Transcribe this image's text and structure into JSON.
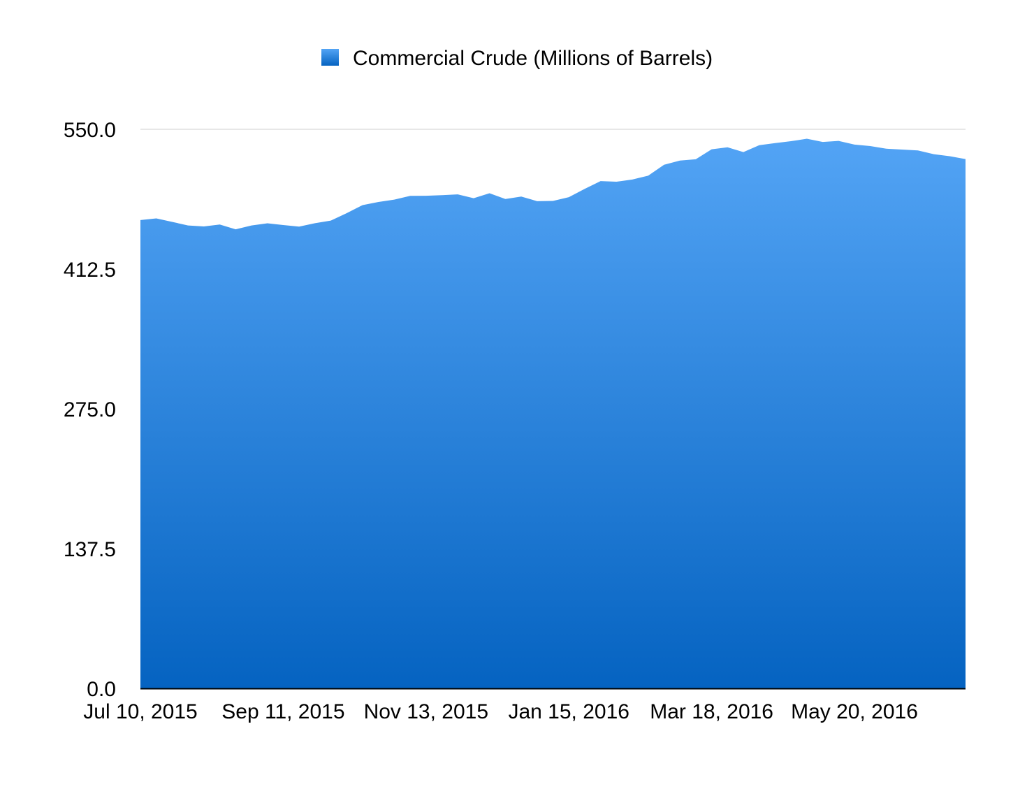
{
  "chart_data": {
    "type": "area",
    "legend": {
      "placement": "top-center",
      "entries": [
        {
          "label": "Commercial Crude (Millions of Barrels)"
        }
      ]
    },
    "series": [
      {
        "name": "Commercial Crude (Millions of Barrels)",
        "color_top": "#53a4f5",
        "color_bottom": "#0563c1",
        "x": [
          "2015-07-10",
          "2015-07-17",
          "2015-07-24",
          "2015-07-31",
          "2015-08-07",
          "2015-08-14",
          "2015-08-21",
          "2015-08-28",
          "2015-09-04",
          "2015-09-11",
          "2015-09-18",
          "2015-09-25",
          "2015-10-02",
          "2015-10-09",
          "2015-10-16",
          "2015-10-23",
          "2015-10-30",
          "2015-11-06",
          "2015-11-13",
          "2015-11-20",
          "2015-11-27",
          "2015-12-04",
          "2015-12-11",
          "2015-12-18",
          "2015-12-25",
          "2016-01-01",
          "2016-01-08",
          "2016-01-15",
          "2016-01-22",
          "2016-01-29",
          "2016-02-05",
          "2016-02-12",
          "2016-02-19",
          "2016-02-26",
          "2016-03-04",
          "2016-03-11",
          "2016-03-18",
          "2016-03-25",
          "2016-04-01",
          "2016-04-08",
          "2016-04-15",
          "2016-04-22",
          "2016-04-29",
          "2016-05-06",
          "2016-05-13",
          "2016-05-20",
          "2016-05-27",
          "2016-06-03",
          "2016-06-10",
          "2016-06-17",
          "2016-06-24",
          "2016-07-01",
          "2016-07-08"
        ],
        "values": [
          460.7,
          462.3,
          458.9,
          455.4,
          454.4,
          456.3,
          451.6,
          455.4,
          457.5,
          455.8,
          454.3,
          457.6,
          460.2,
          467.5,
          475.4,
          478.5,
          480.8,
          484.5,
          484.6,
          485.2,
          486.0,
          482.2,
          487.1,
          481.4,
          483.8,
          479.3,
          479.5,
          483.2,
          491.4,
          499.0,
          498.4,
          500.6,
          504.4,
          515.1,
          519.2,
          520.5,
          530.3,
          532.3,
          527.6,
          534.4,
          536.4,
          538.3,
          540.7,
          537.5,
          538.6,
          535.0,
          533.5,
          530.9,
          530.1,
          529.2,
          525.5,
          523.5,
          520.7
        ]
      }
    ],
    "x_tick_labels": [
      "Jul 10, 2015",
      "Sep 11, 2015",
      "Nov 13, 2015",
      "Jan 15, 2016",
      "Mar 18, 2016",
      "May 20, 2016"
    ],
    "x_tick_values": [
      "2015-07-10",
      "2015-09-11",
      "2015-11-13",
      "2016-01-15",
      "2016-03-18",
      "2016-05-20"
    ],
    "x_range": [
      "2015-07-10",
      "2016-07-08"
    ],
    "y_tick_labels": [
      "0.0",
      "137.5",
      "275.0",
      "412.5",
      "550.0"
    ],
    "y_tick_values": [
      0,
      137.5,
      275,
      412.5,
      550
    ],
    "ylim": [
      0,
      550
    ],
    "grid": "horizontal line at top only"
  }
}
